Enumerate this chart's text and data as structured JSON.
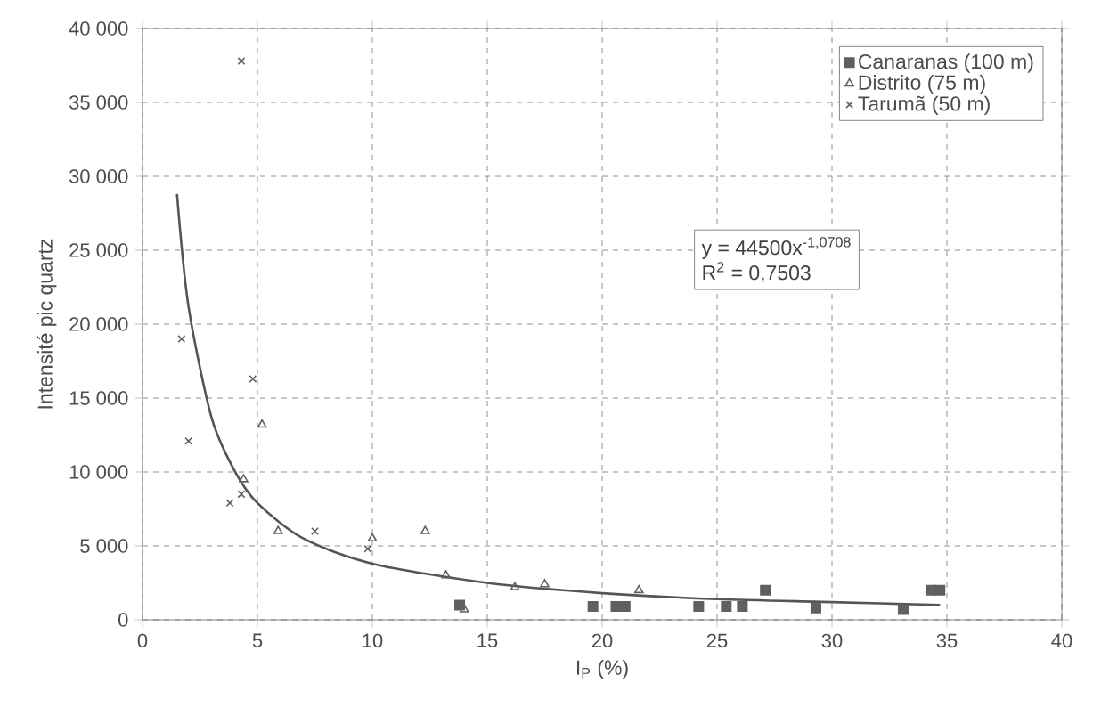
{
  "chart_data": {
    "type": "scatter",
    "xlabel": "I$_{P}$ (%)",
    "ylabel": "Intensité pic quartz",
    "xlim": [
      0,
      40
    ],
    "xticks": [
      0,
      5,
      10,
      15,
      20,
      25,
      30,
      35,
      40
    ],
    "ylim": [
      0,
      40000
    ],
    "yticks": [
      0,
      {
        "value": 5000,
        "label": "5 000"
      },
      {
        "value": 10000,
        "label": "10 000"
      },
      {
        "value": 15000,
        "label": "15 000"
      },
      {
        "value": 20000,
        "label": "20 000"
      },
      {
        "value": 25000,
        "label": "25 000"
      },
      {
        "value": 30000,
        "label": "30 000"
      },
      {
        "value": 35000,
        "label": "35 000"
      },
      {
        "value": 40000,
        "label": "40 000"
      }
    ],
    "grid": true,
    "legend": "top right",
    "annotations": [
      "y = 44500x$^{-1,0708}$",
      "R$^{2}$ = 0,7503"
    ],
    "series": [
      {
        "name": "Canaranas (100 m)",
        "color": "#606060",
        "marker": "square",
        "x": [
          13.8,
          19.6,
          20.6,
          21.0,
          24.2,
          25.4,
          26.1,
          27.1,
          29.3,
          33.1,
          34.3,
          34.7
        ],
        "values": [
          1000,
          900,
          900,
          900,
          900,
          900,
          900,
          2000,
          800,
          700,
          2000,
          2000
        ]
      },
      {
        "name": "Distrito (75 m)",
        "color": "#606060",
        "marker": "triangle",
        "x": [
          4.4,
          5.2,
          5.9,
          10.0,
          12.3,
          13.2,
          14.0,
          16.2,
          17.5,
          21.6
        ],
        "values": [
          9500,
          13200,
          6000,
          5500,
          6000,
          3000,
          700,
          2200,
          2400,
          2000
        ]
      },
      {
        "name": "Tarumã (50 m)",
        "color": "#606060",
        "marker": "cross",
        "x": [
          1.7,
          2.0,
          3.8,
          4.3,
          4.3,
          4.8,
          7.5,
          9.8
        ],
        "values": [
          19000,
          12100,
          7900,
          8500,
          37800,
          16300,
          6000,
          4800
        ]
      },
      {
        "type": "line",
        "color": "#555555",
        "marker": "none",
        "x": [
          1.5,
          2,
          3,
          4,
          5,
          7,
          10,
          15,
          20,
          25,
          30,
          34.7
        ],
        "values": [
          28800,
          21200,
          13700,
          10100,
          7900,
          5500,
          3800,
          2500,
          1800,
          1400,
          1200,
          1000
        ]
      }
    ]
  }
}
